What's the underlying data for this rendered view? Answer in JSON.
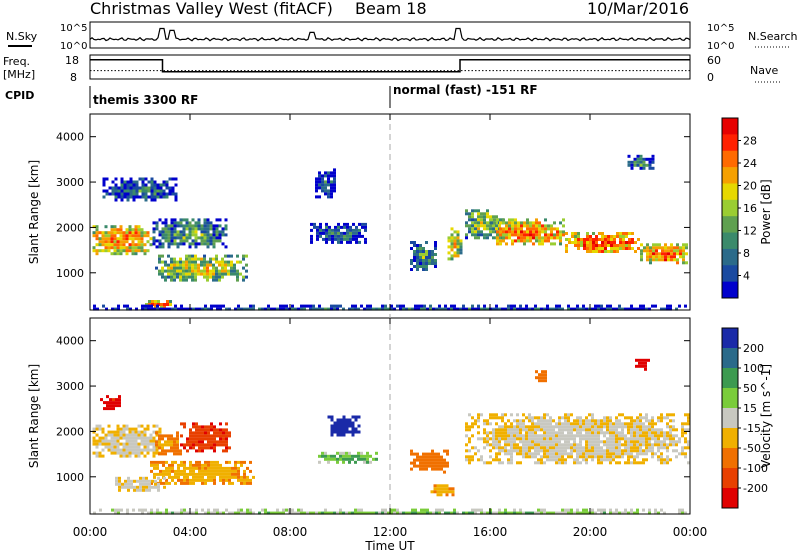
{
  "header": {
    "station": "Christmas Valley West (fitACF)",
    "beam": "Beam 18",
    "date": "10/Mar/2016"
  },
  "noise_panel": {
    "left_label": "N.Sky",
    "right_label": "N.Search",
    "left_ticks": [
      "10^5",
      "10^0"
    ],
    "right_ticks": [
      "10^5",
      "10^0"
    ]
  },
  "freq_panel": {
    "left_label_line1": "Freq.",
    "left_label_line2": "[MHz]",
    "left_ticks": [
      "18",
      "8"
    ],
    "right_label": "Nave",
    "right_ticks": [
      "60",
      "0"
    ]
  },
  "cpid": {
    "label": "CPID",
    "segments": [
      {
        "text": "themis 3300 RF",
        "start_hour": 0
      },
      {
        "text": "normal (fast) -151 RF",
        "start_hour": 12
      }
    ]
  },
  "x_axis": {
    "label": "Time UT",
    "ticks": [
      "00:00",
      "04:00",
      "08:00",
      "12:00",
      "16:00",
      "20:00",
      "00:00"
    ]
  },
  "power_panel": {
    "ylabel": "Slant Range [km]",
    "yticks": [
      "4000",
      "3000",
      "2000",
      "1000"
    ],
    "colorbar_label": "Power [dB]",
    "colorbar_ticks": [
      "28",
      "24",
      "20",
      "16",
      "12",
      "8",
      "4"
    ]
  },
  "velocity_panel": {
    "ylabel": "Slant Range [km]",
    "yticks": [
      "4000",
      "3000",
      "2000",
      "1000"
    ],
    "colorbar_label": "Velocity [m s^-1]",
    "colorbar_ticks": [
      "200",
      "100",
      "50",
      "15",
      "-15",
      "-50",
      "-100",
      "-200"
    ]
  },
  "chart_data": [
    {
      "type": "line",
      "name": "noise",
      "x_range_hours": [
        0,
        24
      ],
      "baseline_level": 0.45,
      "spikes": [
        {
          "hour": 2.9,
          "level": 1.0
        },
        {
          "hour": 3.3,
          "level": 0.9
        },
        {
          "hour": 8.9,
          "level": 0.8
        },
        {
          "hour": 14.7,
          "level": 1.0
        }
      ]
    },
    {
      "type": "line",
      "name": "frequency",
      "x_range_hours": [
        0,
        24
      ],
      "ylim_mhz": [
        8,
        18
      ],
      "steps": [
        {
          "from": 0,
          "to": 2.9,
          "mhz": 16
        },
        {
          "from": 2.9,
          "to": 14.8,
          "mhz": 11
        },
        {
          "from": 14.8,
          "to": 24,
          "mhz": 16
        }
      ],
      "nave_dotted_level": 0.35
    },
    {
      "type": "heatmap",
      "name": "power",
      "x_range_hours": [
        0,
        24
      ],
      "ylim_km": [
        180,
        4500
      ],
      "clim_db": [
        0,
        32
      ],
      "regions": [
        {
          "h0": 0.1,
          "h1": 2.5,
          "r0": 1450,
          "r1": 2050,
          "v": 26
        },
        {
          "h0": 2.5,
          "h1": 5.5,
          "r0": 1550,
          "r1": 2200,
          "v": 14
        },
        {
          "h0": 2.6,
          "h1": 6.2,
          "r0": 850,
          "r1": 1400,
          "v": 20
        },
        {
          "h0": 0.5,
          "h1": 3.5,
          "r0": 2600,
          "r1": 3100,
          "v": 10
        },
        {
          "h0": 2.2,
          "h1": 3.2,
          "r0": 250,
          "r1": 400,
          "v": 28
        },
        {
          "h0": 0,
          "h1": 24,
          "r0": 190,
          "r1": 300,
          "v": 8
        },
        {
          "h0": 8.8,
          "h1": 11.0,
          "r0": 1700,
          "r1": 2100,
          "v": 10
        },
        {
          "h0": 9.0,
          "h1": 9.8,
          "r0": 2700,
          "r1": 3300,
          "v": 8
        },
        {
          "h0": 12.8,
          "h1": 13.8,
          "r0": 1100,
          "r1": 1700,
          "v": 12
        },
        {
          "h0": 14.3,
          "h1": 14.8,
          "r0": 1300,
          "r1": 2000,
          "v": 22
        },
        {
          "h0": 15.0,
          "h1": 16.5,
          "r0": 1800,
          "r1": 2400,
          "v": 18
        },
        {
          "h0": 16.0,
          "h1": 19.0,
          "r0": 1650,
          "r1": 2200,
          "v": 26
        },
        {
          "h0": 19.0,
          "h1": 22.0,
          "r0": 1450,
          "r1": 1900,
          "v": 28
        },
        {
          "h0": 22.0,
          "h1": 23.9,
          "r0": 1250,
          "r1": 1650,
          "v": 28
        },
        {
          "h0": 21.5,
          "h1": 22.5,
          "r0": 3300,
          "r1": 3600,
          "v": 12
        }
      ]
    },
    {
      "type": "heatmap",
      "name": "velocity",
      "x_range_hours": [
        0,
        24
      ],
      "ylim_km": [
        180,
        4500
      ],
      "clim_ms": [
        -250,
        250
      ],
      "regions": [
        {
          "h0": 0.1,
          "h1": 2.8,
          "r0": 1450,
          "r1": 2150,
          "v": 0
        },
        {
          "h0": 0.4,
          "h1": 1.2,
          "r0": 2500,
          "r1": 2800,
          "v": -150
        },
        {
          "h0": 2.6,
          "h1": 3.6,
          "r0": 1500,
          "r1": 2000,
          "v": -40
        },
        {
          "h0": 3.6,
          "h1": 5.6,
          "r0": 1600,
          "r1": 2200,
          "v": -130
        },
        {
          "h0": 2.4,
          "h1": 6.5,
          "r0": 850,
          "r1": 1350,
          "v": -30
        },
        {
          "h0": 1.0,
          "h1": 3.0,
          "r0": 700,
          "r1": 1000,
          "v": 0
        },
        {
          "h0": 0,
          "h1": 24,
          "r0": 190,
          "r1": 300,
          "v": 30
        },
        {
          "h0": 9.5,
          "h1": 10.8,
          "r0": 1900,
          "r1": 2350,
          "v": 230
        },
        {
          "h0": 9.0,
          "h1": 11.5,
          "r0": 1350,
          "r1": 1550,
          "v": 40
        },
        {
          "h0": 12.8,
          "h1": 14.3,
          "r0": 1100,
          "r1": 1600,
          "v": -60
        },
        {
          "h0": 13.5,
          "h1": 14.5,
          "r0": 600,
          "r1": 900,
          "v": -30
        },
        {
          "h0": 15.0,
          "h1": 24.0,
          "r0": 1300,
          "r1": 2400,
          "v": 0
        },
        {
          "h0": 17.8,
          "h1": 18.3,
          "r0": 3150,
          "r1": 3350,
          "v": -60
        },
        {
          "h0": 21.8,
          "h1": 22.3,
          "r0": 3400,
          "r1": 3600,
          "v": -200
        }
      ]
    }
  ]
}
